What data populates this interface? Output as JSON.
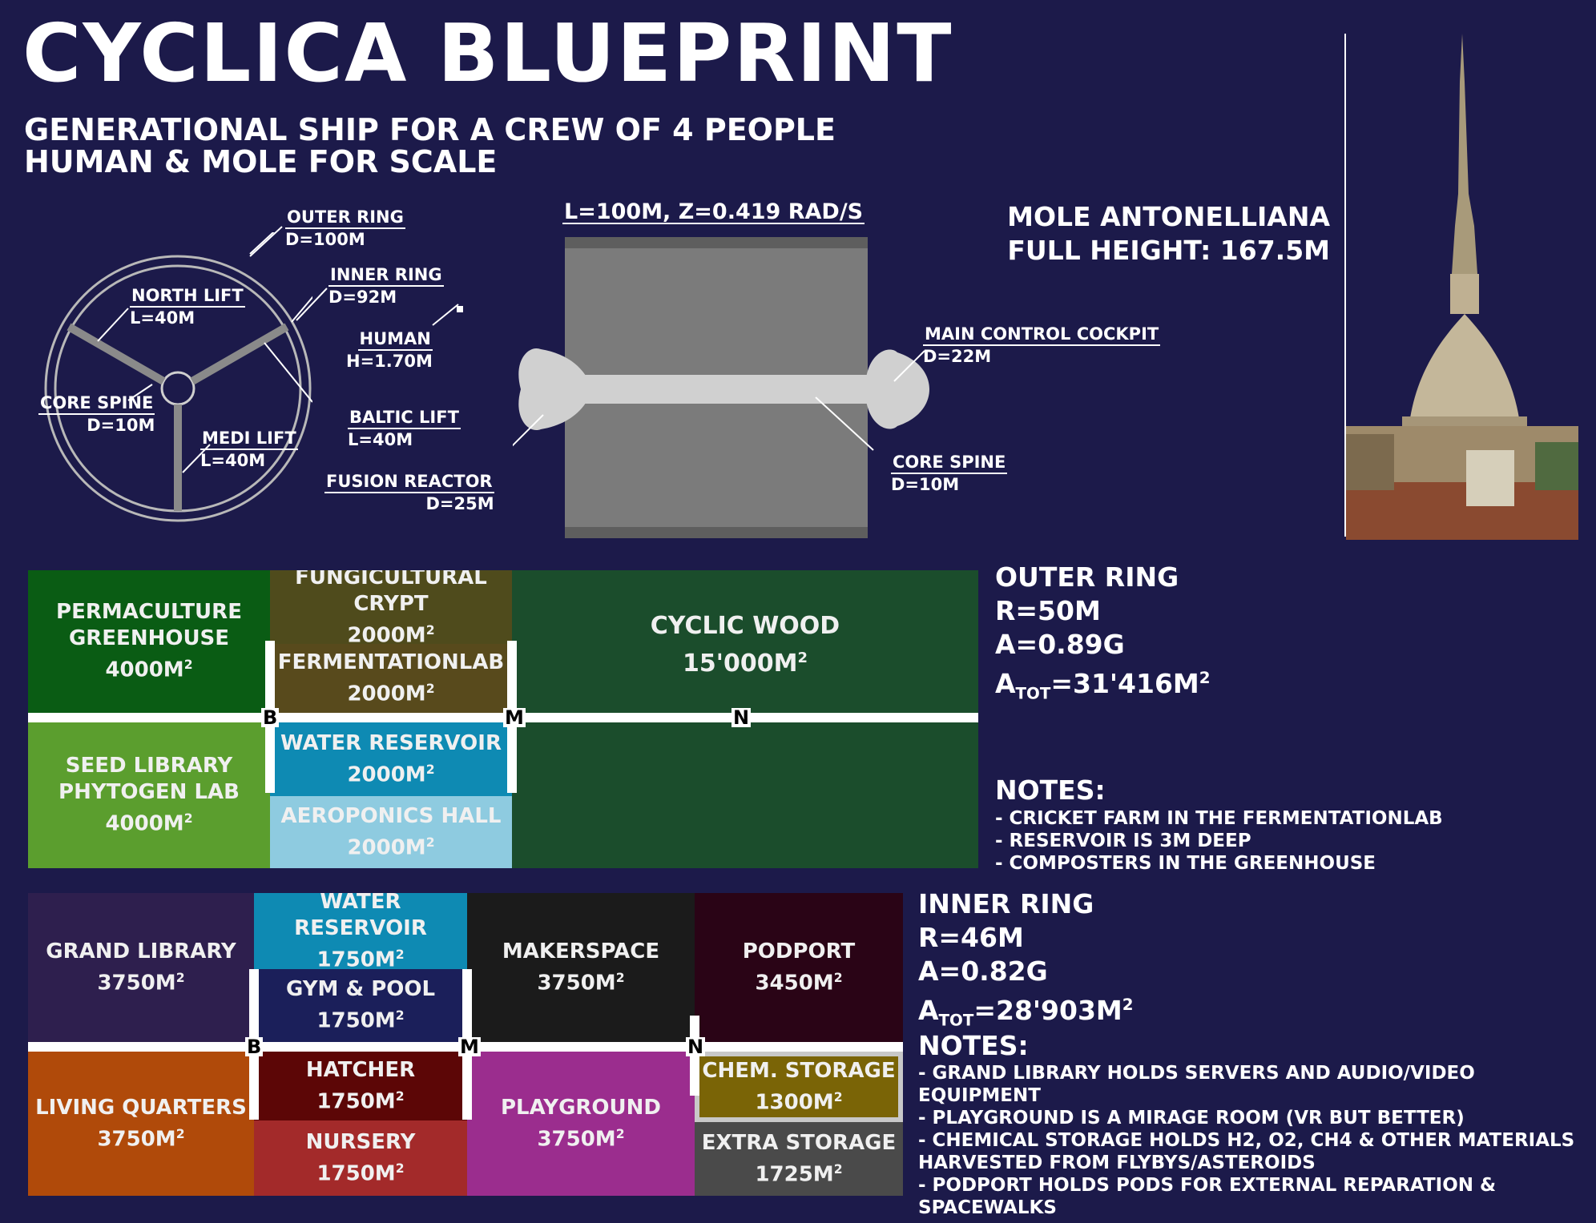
{
  "title": "CYCLICA BLUEPRINT",
  "subtitle_1": "GENERATIONAL SHIP FOR A CREW OF 4 PEOPLE",
  "subtitle_2": "HUMAN & MOLE FOR SCALE",
  "ring_diagram": {
    "outer_ring": "OUTER RING",
    "outer_ring_d": "D=100M",
    "inner_ring": "INNER RING",
    "inner_ring_d": "D=92M",
    "north_lift": "NORTH LIFT",
    "north_lift_l": "L=40M",
    "human": "HUMAN",
    "human_h": "H=1.70M",
    "core_spine": "CORE SPINE",
    "core_spine_d": "D=10M",
    "baltic_lift": "BALTIC LIFT",
    "baltic_lift_l": "L=40M",
    "medi_lift": "MEDI LIFT",
    "medi_lift_l": "L=40M",
    "fusion_reactor": "FUSION REACTOR",
    "fusion_reactor_d": "D=25M"
  },
  "side_view": {
    "header": "L=100M, Z=0.419 RAD/S",
    "cockpit": "MAIN CONTROL COCKPIT",
    "cockpit_d": "D=22M",
    "core_spine": "CORE SPINE",
    "core_spine_d": "D=10M"
  },
  "mole": {
    "name": "MOLE ANTONELLIANA",
    "height": "FULL HEIGHT: 167.5M"
  },
  "outer_ring": {
    "title": "OUTER RING",
    "r": "R=50M",
    "a": "A=0.89G",
    "atot_a": "A",
    "atot_sub": "TOT",
    "atot_val": "=31'416M",
    "notes_title": "NOTES:",
    "notes": [
      "- CRICKET FARM IN THE FERMENTATIONLAB",
      "- RESERVOIR IS 3M DEEP",
      "- COMPOSTERS IN THE GREENHOUSE"
    ],
    "rooms": {
      "permaculture_1": "PERMACULTURE",
      "permaculture_2": "GREENHOUSE",
      "permaculture_area": "4000M",
      "fungi_1": "FUNGICULTURAL",
      "fungi_2": "CRYPT",
      "fungi_area": "2000M",
      "ferm_1": "FERMENTATIONLAB",
      "ferm_area": "2000M",
      "wood_1": "CYCLIC WOOD",
      "wood_area": "15'000M",
      "seed_1": "SEED LIBRARY",
      "seed_2": "PHYTOGEN LAB",
      "seed_area": "4000M",
      "water_1": "WATER RESERVOIR",
      "water_area": "2000M",
      "aero_1": "AEROPONICS HALL",
      "aero_area": "2000M"
    },
    "markers": [
      "B",
      "M",
      "N"
    ]
  },
  "inner_ring": {
    "title": "INNER RING",
    "r": "R=46M",
    "a": "A=0.82G",
    "atot_a": "A",
    "atot_sub": "TOT",
    "atot_val": "=28'903M",
    "notes_title": "NOTES:",
    "notes": [
      "- GRAND LIBRARY HOLDS SERVERS AND AUDIO/VIDEO",
      "EQUIPMENT",
      "- PLAYGROUND IS A MIRAGE ROOM (VR BUT BETTER)",
      "- CHEMICAL STORAGE HOLDS H2, O2, CH4 & OTHER MATERIALS",
      "HARVESTED FROM FLYBYS/ASTEROIDS",
      "- PODPORT HOLDS PODS FOR EXTERNAL REPARATION &",
      "SPACEWALKS"
    ],
    "rooms": {
      "library_1": "GRAND LIBRARY",
      "library_area": "3750M",
      "water_1": "WATER",
      "water_2": "RESERVOIR",
      "water_area": "1750M",
      "gym_1": "GYM & POOL",
      "gym_area": "1750M",
      "maker_1": "MAKERSPACE",
      "maker_area": "3750M",
      "podport_1": "PODPORT",
      "podport_area": "3450M",
      "living_1": "LIVING QUARTERS",
      "living_area": "3750M",
      "hatcher_1": "HATCHER",
      "hatcher_area": "1750M",
      "nursery_1": "NURSERY",
      "nursery_area": "1750M",
      "playground_1": "PLAYGROUND",
      "playground_area": "3750M",
      "chem_1": "CHEM. STORAGE",
      "chem_area": "1300M",
      "extra_1": "EXTRA STORAGE",
      "extra_area": "1725M"
    },
    "markers": [
      "B",
      "M",
      "N"
    ]
  },
  "superscript": "2",
  "colors": {
    "background": "#1c1a4a",
    "permaculture": "#0a5c14",
    "fungi": "#4f4b1c",
    "fermentation": "#584a1c",
    "cyclic_wood": "#1b4d2c",
    "seed_library": "#5b9e2e",
    "water_outer": "#0e8ab3",
    "aeroponics": "#8ecbe0",
    "grand_library": "#2e1f4e",
    "water_inner": "#0e8ab3",
    "gym": "#1b1f5a",
    "makerspace": "#1b1b1b",
    "podport": "#2a0416",
    "living": "#b04a0a",
    "hatcher": "#5c0606",
    "nursery": "#a32a2a",
    "playground": "#9b2d8e",
    "chem": "#7a6406",
    "extra": "#4a4a4a"
  }
}
